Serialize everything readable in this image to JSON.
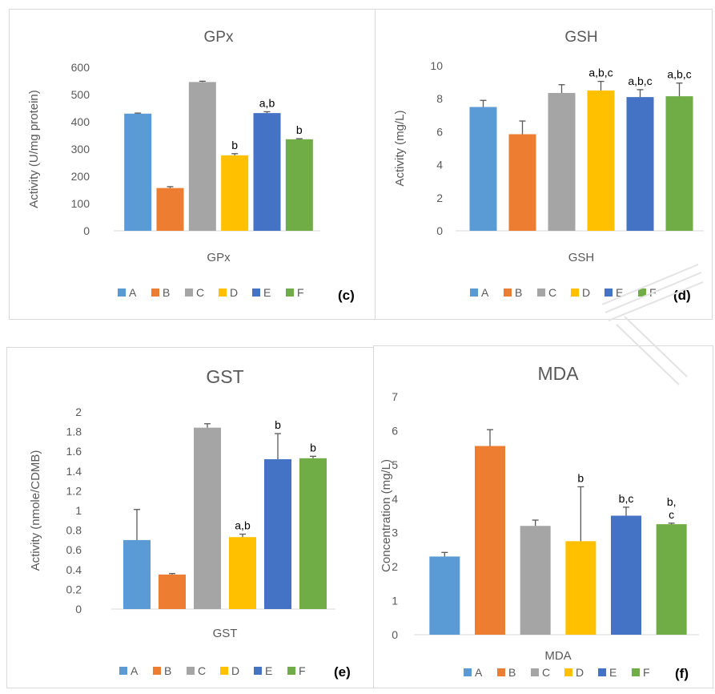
{
  "legend_labels": [
    "A",
    "B",
    "C",
    "D",
    "E",
    "F"
  ],
  "colors": {
    "A": "#5b9bd5",
    "B": "#ed7d31",
    "C": "#a5a5a5",
    "D": "#ffc000",
    "E": "#4472c4",
    "F": "#70ad47",
    "axis_text": "#595959",
    "gridline": "#d9d9d9",
    "error_bar": "#595959"
  },
  "chart_data": [
    {
      "type": "bar",
      "title": "GPx",
      "panel_label": "(c)",
      "xlabel": "GPx",
      "ylabel": "Activity (U/mg protein)",
      "ylim": [
        0,
        600
      ],
      "yticks": [
        "0",
        "100",
        "200",
        "300",
        "400",
        "500",
        "600"
      ],
      "grid": false,
      "legend": "bottom",
      "series": [
        {
          "name": "A",
          "value": 430,
          "error": 2,
          "annotation": ""
        },
        {
          "name": "B",
          "value": 157,
          "error": 5,
          "annotation": ""
        },
        {
          "name": "C",
          "value": 546,
          "error": 3,
          "annotation": ""
        },
        {
          "name": "D",
          "value": 277,
          "error": 6,
          "annotation": "b"
        },
        {
          "name": "E",
          "value": 432,
          "error": 5,
          "annotation": "a,b"
        },
        {
          "name": "F",
          "value": 336,
          "error": 2,
          "annotation": "b"
        }
      ]
    },
    {
      "type": "bar",
      "title": "GSH",
      "panel_label": "(d)",
      "xlabel": "GSH",
      "ylabel": "Activity (mg/L)",
      "ylim": [
        0,
        10
      ],
      "yticks": [
        "0",
        "2",
        "4",
        "6",
        "8",
        "10"
      ],
      "grid": false,
      "legend": "bottom",
      "series": [
        {
          "name": "A",
          "value": 7.5,
          "error": 0.4,
          "annotation": ""
        },
        {
          "name": "B",
          "value": 5.85,
          "error": 0.8,
          "annotation": ""
        },
        {
          "name": "C",
          "value": 8.35,
          "error": 0.5,
          "annotation": ""
        },
        {
          "name": "D",
          "value": 8.5,
          "error": 0.55,
          "annotation": "a,b,c"
        },
        {
          "name": "E",
          "value": 8.1,
          "error": 0.45,
          "annotation": "a,b,c"
        },
        {
          "name": "F",
          "value": 8.15,
          "error": 0.8,
          "annotation": "a,b,c"
        }
      ]
    },
    {
      "type": "bar",
      "title": "GST",
      "panel_label": "(e)",
      "xlabel": "GST",
      "ylabel": "Activity (nmole/CDMB)",
      "ylim": [
        0,
        2
      ],
      "yticks": [
        "0",
        "0.2",
        "0.4",
        "0.6",
        "0.8",
        "1",
        "1.2",
        "1.4",
        "1.6",
        "1.8",
        "2"
      ],
      "grid": false,
      "legend": "bottom",
      "series": [
        {
          "name": "A",
          "value": 0.7,
          "error": 0.31,
          "annotation": ""
        },
        {
          "name": "B",
          "value": 0.35,
          "error": 0.01,
          "annotation": ""
        },
        {
          "name": "C",
          "value": 1.84,
          "error": 0.04,
          "annotation": ""
        },
        {
          "name": "D",
          "value": 0.73,
          "error": 0.03,
          "annotation": "a,b"
        },
        {
          "name": "E",
          "value": 1.52,
          "error": 0.26,
          "annotation": "b"
        },
        {
          "name": "F",
          "value": 1.53,
          "error": 0.02,
          "annotation": "b"
        }
      ]
    },
    {
      "type": "bar",
      "title": "MDA",
      "panel_label": "(f)",
      "xlabel": "MDA",
      "ylabel": "Concentration (mg/L)",
      "ylim": [
        0,
        7
      ],
      "yticks": [
        "0",
        "1",
        "2",
        "3",
        "4",
        "5",
        "6",
        "7"
      ],
      "grid": false,
      "legend": "bottom",
      "series": [
        {
          "name": "A",
          "value": 2.3,
          "error": 0.12,
          "annotation": ""
        },
        {
          "name": "B",
          "value": 5.55,
          "error": 0.48,
          "annotation": ""
        },
        {
          "name": "C",
          "value": 3.2,
          "error": 0.17,
          "annotation": ""
        },
        {
          "name": "D",
          "value": 2.75,
          "error": 1.6,
          "annotation": "b"
        },
        {
          "name": "E",
          "value": 3.5,
          "error": 0.25,
          "annotation": "b,c"
        },
        {
          "name": "F",
          "value": 3.25,
          "error": 0.03,
          "annotation": "b,\nc"
        }
      ]
    }
  ]
}
